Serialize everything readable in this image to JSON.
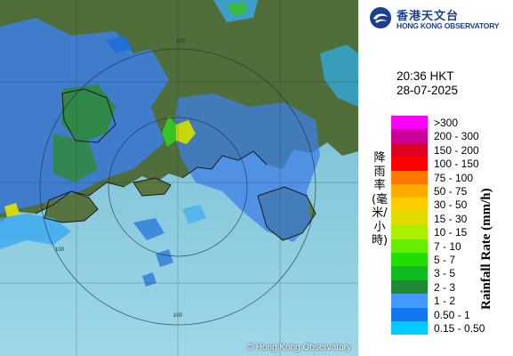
{
  "map": {
    "copyright": "© Hong Kong Observatory",
    "range_ring_labels": [
      "100",
      "100",
      "100"
    ]
  },
  "logo": {
    "chinese_name": "香港天文台",
    "english_name": "HONG KONG OBSERVATORY"
  },
  "timestamp": {
    "time": "20:36 HKT",
    "date": "28-07-2025"
  },
  "legend": {
    "title_en": "Rainfall Rate (mm/h)",
    "title_zh": "降雨率(毫米/小時)",
    "items": [
      {
        "label": ">300",
        "color": "#ff00ff"
      },
      {
        "label": "200 - 300",
        "color": "#cc0099"
      },
      {
        "label": "150 - 200",
        "color": "#dd0022"
      },
      {
        "label": "100 - 150",
        "color": "#ff0000"
      },
      {
        "label": "75 - 100",
        "color": "#ff7700"
      },
      {
        "label": "50 - 75",
        "color": "#ffaa00"
      },
      {
        "label": "30 - 50",
        "color": "#ffcc00"
      },
      {
        "label": "15 - 30",
        "color": "#dddd00"
      },
      {
        "label": "10 - 15",
        "color": "#aaee00"
      },
      {
        "label": "7 - 10",
        "color": "#66ee00"
      },
      {
        "label": "5 - 7",
        "color": "#22dd00"
      },
      {
        "label": "3 - 5",
        "color": "#11bb22"
      },
      {
        "label": "2 - 3",
        "color": "#228833"
      },
      {
        "label": "1 - 2",
        "color": "#4499ff"
      },
      {
        "label": "0.50 - 1",
        "color": "#1177ee"
      },
      {
        "label": "0.15 - 0.50",
        "color": "#00ccff"
      }
    ]
  }
}
